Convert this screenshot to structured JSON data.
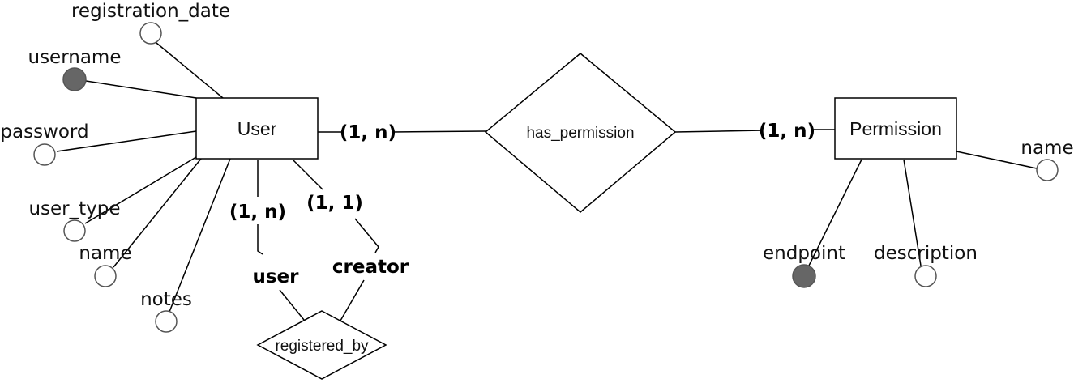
{
  "entities": {
    "user": "User",
    "permission": "Permission"
  },
  "relationships": {
    "has_permission": "has_permission",
    "registered_by": "registered_by"
  },
  "user_attributes": {
    "registration_date": "registration_date",
    "username": "username",
    "password": "password",
    "user_type": "user_type",
    "name": "name",
    "notes": "notes"
  },
  "permission_attributes": {
    "name": "name",
    "endpoint": "endpoint",
    "description": "description"
  },
  "cardinalities": {
    "user_has_permission": "(1, n)",
    "permission_has_permission": "(1, n)",
    "user_role": "(1, n)",
    "creator_role": "(1, 1)"
  },
  "roles": {
    "user": "user",
    "creator": "creator"
  },
  "colors": {
    "key_attribute_fill": "#666666",
    "line": "#000000"
  }
}
